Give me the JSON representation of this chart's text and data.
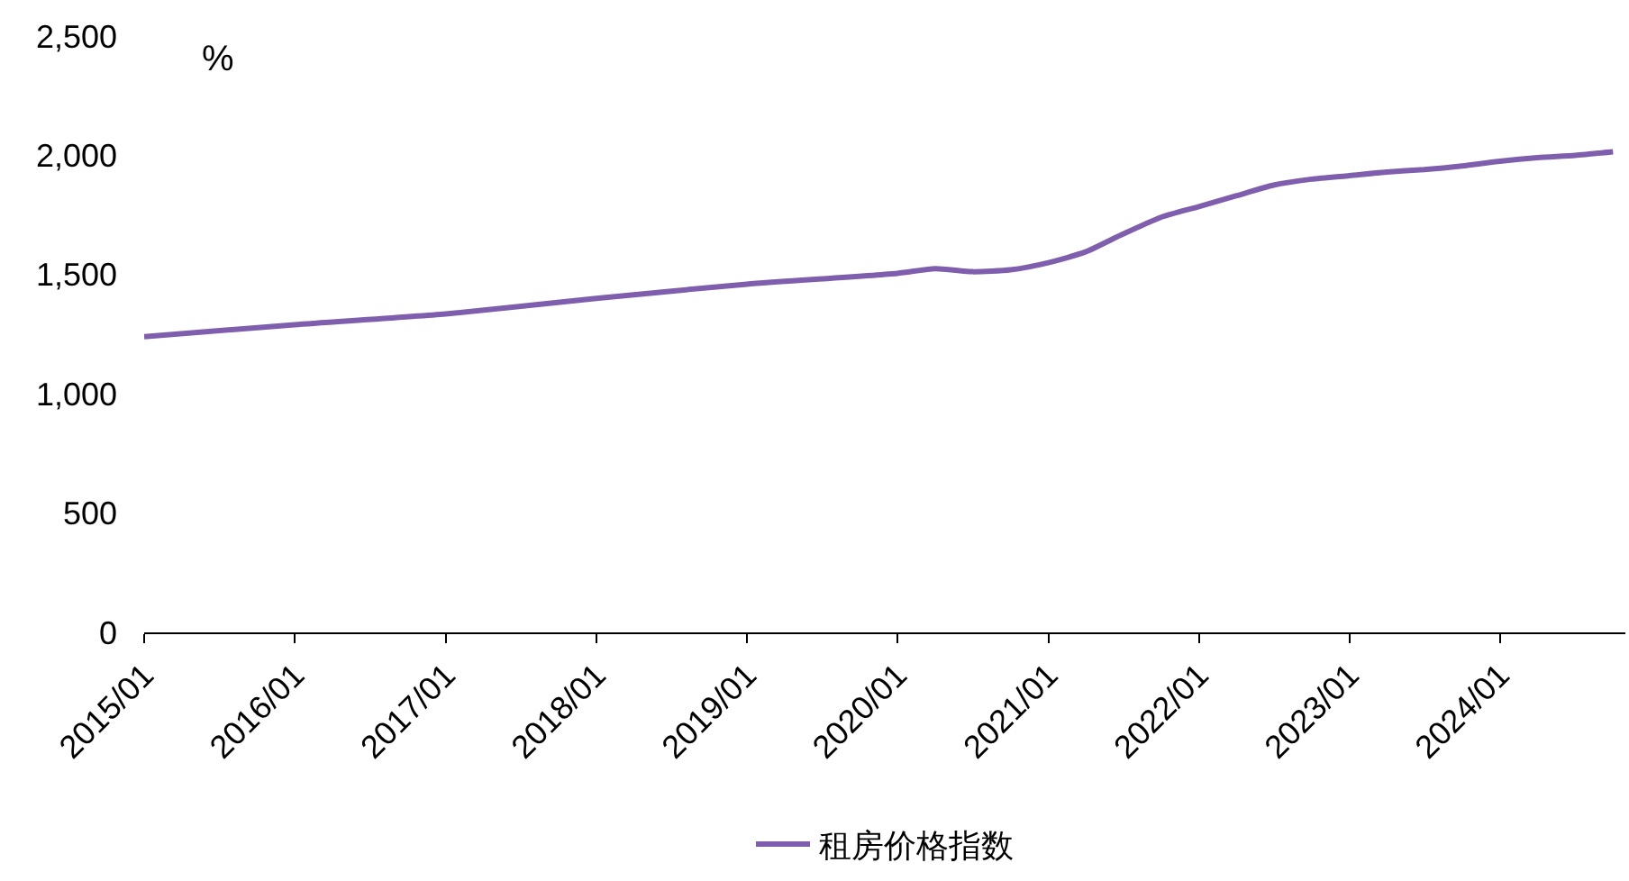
{
  "chart_data": {
    "type": "line",
    "ylabel": "%",
    "x": [
      "2015-01",
      "2016-01",
      "2017-01",
      "2018-01",
      "2019-01",
      "2020-01",
      "2020-04",
      "2020-07",
      "2020-10",
      "2021-01",
      "2021-04",
      "2021-07",
      "2021-10",
      "2022-01",
      "2022-04",
      "2022-07",
      "2022-10",
      "2023-01",
      "2023-04",
      "2023-07",
      "2023-10",
      "2024-01",
      "2024-04",
      "2024-07",
      "2024-10"
    ],
    "series": [
      {
        "name": "租房价格指数",
        "color": "#7f5fad",
        "values": [
          1240,
          1290,
          1335,
          1400,
          1460,
          1505,
          1525,
          1512,
          1520,
          1550,
          1595,
          1670,
          1740,
          1785,
          1830,
          1875,
          1900,
          1915,
          1930,
          1940,
          1955,
          1975,
          1990,
          2000,
          2015
        ]
      }
    ],
    "xlim": [
      "2015-01",
      "2024-10-31"
    ],
    "xticks": [
      {
        "value": "2015-01",
        "label": "2015/01"
      },
      {
        "value": "2016-01",
        "label": "2016/01"
      },
      {
        "value": "2017-01",
        "label": "2017/01"
      },
      {
        "value": "2018-01",
        "label": "2018/01"
      },
      {
        "value": "2019-01",
        "label": "2019/01"
      },
      {
        "value": "2020-01",
        "label": "2020/01"
      },
      {
        "value": "2021-01",
        "label": "2021/01"
      },
      {
        "value": "2022-01",
        "label": "2022/01"
      },
      {
        "value": "2023-01",
        "label": "2023/01"
      },
      {
        "value": "2024-01",
        "label": "2024/01"
      }
    ],
    "ylim": [
      0,
      2500
    ],
    "yticks": [
      0,
      {
        "value": 500,
        "label": "500"
      },
      {
        "value": 1000,
        "label": "1,000"
      },
      {
        "value": 1500,
        "label": "1,500"
      },
      {
        "value": 2000,
        "label": "2,000"
      },
      {
        "value": 2500,
        "label": "2,500"
      }
    ],
    "grid": false,
    "legend": "bottom",
    "marker": "none",
    "line_style": "solid"
  }
}
